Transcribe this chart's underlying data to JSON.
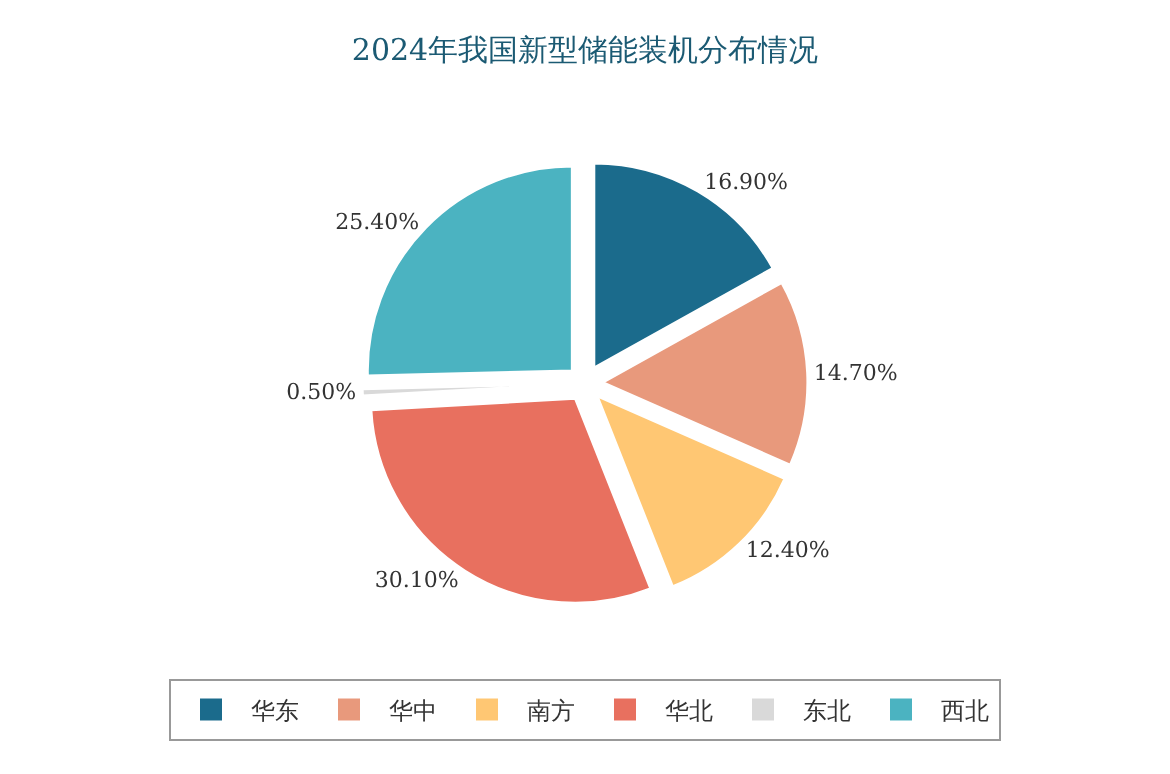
{
  "chart_data": {
    "type": "pie",
    "title": "2024年我国新型储能装机分布情况",
    "categories": [
      "华东",
      "华中",
      "南方",
      "华北",
      "东北",
      "西北"
    ],
    "values": [
      16.9,
      14.7,
      12.4,
      30.1,
      0.5,
      25.4
    ],
    "value_labels": [
      "16.90%",
      "14.70%",
      "12.40%",
      "30.10%",
      "0.50%",
      "25.40%"
    ],
    "colors": [
      "#1b6b8c",
      "#e8997c",
      "#ffc773",
      "#e8705f",
      "#d9d9d9",
      "#4bb3c1"
    ],
    "legend": "bottom"
  }
}
